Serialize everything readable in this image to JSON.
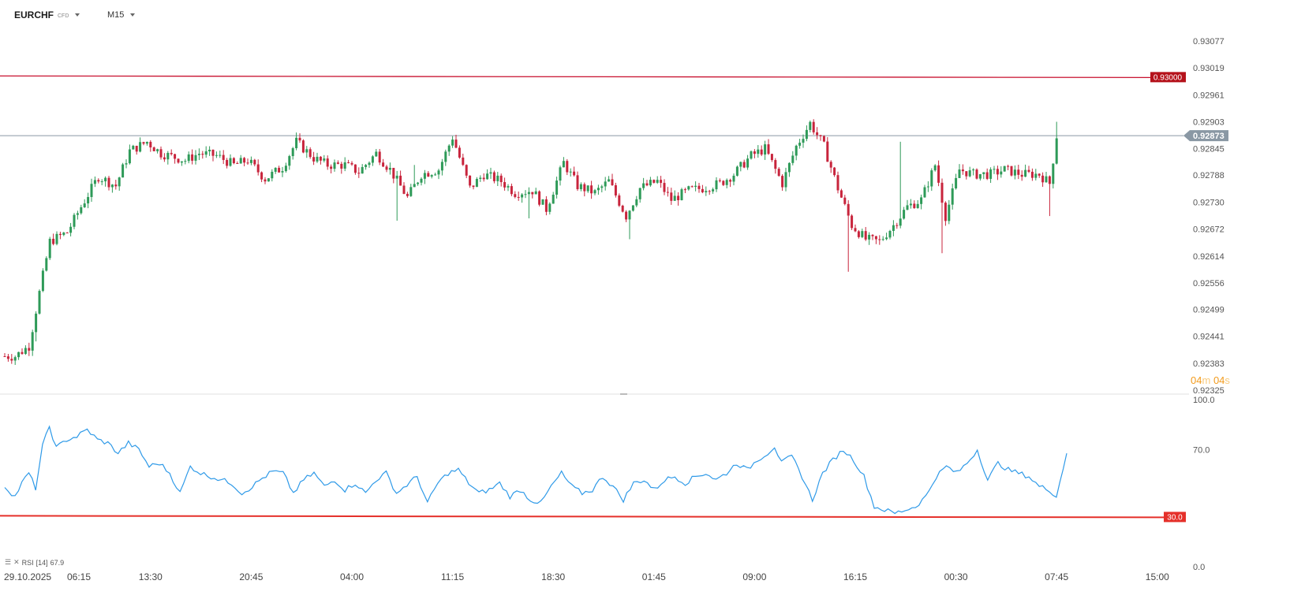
{
  "header": {
    "symbol": "EURCHF",
    "symbol_type": "CFD",
    "timeframe": "M15"
  },
  "timer": {
    "minutes": "04",
    "m": "m",
    "seconds": "04",
    "s": "s"
  },
  "rsi": {
    "label": "RSI",
    "period": "[14]",
    "value": "67.9"
  },
  "colors": {
    "up": "#2e9a58",
    "down": "#c8243c",
    "resistance": "#c8102e",
    "price_line": "#8a98a4",
    "rsi_line": "#2f9ae8",
    "rsi_level": "#e5302a"
  },
  "chart_data": [
    {
      "type": "candlestick",
      "symbol": "EURCHF",
      "timeframe": "M15",
      "ylim": [
        0.92325,
        0.93077
      ],
      "y_ticks": [
        "0.93077",
        "0.93019",
        "0.92961",
        "0.92903",
        "0.92845",
        "0.92788",
        "0.92730",
        "0.92672",
        "0.92614",
        "0.92556",
        "0.92499",
        "0.92441",
        "0.92383",
        "0.92325"
      ],
      "x_ticks": [
        {
          "label": "29.10.2025",
          "bar": 0
        },
        {
          "label": "06:15",
          "bar": 13
        },
        {
          "label": "13:30",
          "bar": 42
        },
        {
          "label": "20:45",
          "bar": 71
        },
        {
          "label": "04:00",
          "bar": 100
        },
        {
          "label": "11:15",
          "bar": 129
        },
        {
          "label": "18:30",
          "bar": 158
        },
        {
          "label": "01:45",
          "bar": 187
        },
        {
          "label": "09:00",
          "bar": 216
        },
        {
          "label": "16:15",
          "bar": 245
        },
        {
          "label": "00:30",
          "bar": 274
        },
        {
          "label": "07:45",
          "bar": 303
        },
        {
          "label": "15:00",
          "bar": 332
        }
      ],
      "horizontal_lines": [
        {
          "value": 0.93,
          "label": "0.93000",
          "kind": "resistance"
        },
        {
          "value": 0.92873,
          "label": "0.92873",
          "kind": "current-price"
        }
      ],
      "close_path": [
        [
          0,
          0.92398
        ],
        [
          3,
          0.92398
        ],
        [
          7,
          0.9242
        ],
        [
          10,
          0.92535
        ],
        [
          13,
          0.92645
        ],
        [
          18,
          0.92665
        ],
        [
          22,
          0.9272
        ],
        [
          27,
          0.92785
        ],
        [
          32,
          0.92765
        ],
        [
          36,
          0.9284
        ],
        [
          41,
          0.9286
        ],
        [
          45,
          0.92835
        ],
        [
          52,
          0.9282
        ],
        [
          56,
          0.92835
        ],
        [
          61,
          0.9283
        ],
        [
          66,
          0.9281
        ],
        [
          70,
          0.9282
        ],
        [
          75,
          0.9278
        ],
        [
          80,
          0.92805
        ],
        [
          84,
          0.9286
        ],
        [
          89,
          0.92825
        ],
        [
          93,
          0.9281
        ],
        [
          98,
          0.9281
        ],
        [
          102,
          0.92795
        ],
        [
          107,
          0.92835
        ],
        [
          111,
          0.928
        ],
        [
          116,
          0.9274
        ],
        [
          120,
          0.9279
        ],
        [
          125,
          0.928
        ],
        [
          129,
          0.9287
        ],
        [
          134,
          0.9276
        ],
        [
          138,
          0.9279
        ],
        [
          143,
          0.92775
        ],
        [
          147,
          0.9275
        ],
        [
          152,
          0.92755
        ],
        [
          156,
          0.92715
        ],
        [
          161,
          0.92815
        ],
        [
          165,
          0.92765
        ],
        [
          170,
          0.9275
        ],
        [
          174,
          0.92775
        ],
        [
          179,
          0.927
        ],
        [
          183,
          0.9276
        ],
        [
          188,
          0.92775
        ],
        [
          192,
          0.92735
        ],
        [
          197,
          0.92755
        ],
        [
          201,
          0.9276
        ],
        [
          206,
          0.9277
        ],
        [
          210,
          0.9279
        ],
        [
          215,
          0.9283
        ],
        [
          219,
          0.92845
        ],
        [
          224,
          0.9277
        ],
        [
          228,
          0.9285
        ],
        [
          232,
          0.929
        ],
        [
          236,
          0.9285
        ],
        [
          240,
          0.9276
        ],
        [
          244,
          0.9268
        ],
        [
          248,
          0.9265
        ],
        [
          252,
          0.92645
        ],
        [
          256,
          0.9268
        ],
        [
          260,
          0.9272
        ],
        [
          264,
          0.92735
        ],
        [
          268,
          0.9281
        ],
        [
          271,
          0.927
        ],
        [
          275,
          0.928
        ],
        [
          279,
          0.9279
        ],
        [
          284,
          0.9279
        ],
        [
          288,
          0.928
        ],
        [
          293,
          0.9279
        ],
        [
          298,
          0.9279
        ],
        [
          301,
          0.9277
        ],
        [
          303,
          0.92873
        ]
      ],
      "spikes": [
        [
          9,
          0.9243
        ],
        [
          113,
          0.9269
        ],
        [
          118,
          0.9281
        ],
        [
          151,
          0.92695
        ],
        [
          180,
          0.9265
        ],
        [
          243,
          0.9258
        ],
        [
          258,
          0.9286
        ],
        [
          270,
          0.9262
        ],
        [
          301,
          0.927
        ],
        [
          303,
          0.92903
        ]
      ],
      "n_bars": 304
    },
    {
      "type": "line",
      "name": "RSI",
      "ylim": [
        0,
        100
      ],
      "y_ticks": [
        "100.0",
        "70.0",
        "30.0",
        "0.0"
      ],
      "levels": [
        {
          "value": 30.0,
          "label": "30.0"
        }
      ],
      "anchors": [
        [
          0,
          48
        ],
        [
          3,
          42
        ],
        [
          5,
          50
        ],
        [
          7,
          56
        ],
        [
          9,
          47
        ],
        [
          11,
          72
        ],
        [
          13,
          84
        ],
        [
          15,
          71
        ],
        [
          18,
          76
        ],
        [
          21,
          78
        ],
        [
          24,
          82
        ],
        [
          27,
          76
        ],
        [
          30,
          74
        ],
        [
          33,
          68
        ],
        [
          36,
          74
        ],
        [
          39,
          70
        ],
        [
          42,
          60
        ],
        [
          45,
          62
        ],
        [
          48,
          56
        ],
        [
          51,
          44
        ],
        [
          54,
          60
        ],
        [
          57,
          56
        ],
        [
          60,
          54
        ],
        [
          63,
          52
        ],
        [
          66,
          50
        ],
        [
          69,
          44
        ],
        [
          72,
          48
        ],
        [
          75,
          53
        ],
        [
          78,
          57
        ],
        [
          81,
          56
        ],
        [
          84,
          44
        ],
        [
          87,
          52
        ],
        [
          90,
          56
        ],
        [
          93,
          48
        ],
        [
          96,
          52
        ],
        [
          99,
          46
        ],
        [
          102,
          50
        ],
        [
          105,
          44
        ],
        [
          108,
          52
        ],
        [
          111,
          56
        ],
        [
          114,
          44
        ],
        [
          117,
          49
        ],
        [
          120,
          54
        ],
        [
          123,
          38
        ],
        [
          126,
          50
        ],
        [
          129,
          56
        ],
        [
          132,
          58
        ],
        [
          135,
          50
        ],
        [
          138,
          44
        ],
        [
          141,
          46
        ],
        [
          144,
          50
        ],
        [
          147,
          42
        ],
        [
          150,
          46
        ],
        [
          153,
          40
        ],
        [
          156,
          38
        ],
        [
          159,
          48
        ],
        [
          162,
          56
        ],
        [
          165,
          48
        ],
        [
          168,
          44
        ],
        [
          171,
          46
        ],
        [
          174,
          54
        ],
        [
          177,
          48
        ],
        [
          180,
          40
        ],
        [
          183,
          50
        ],
        [
          186,
          52
        ],
        [
          189,
          46
        ],
        [
          192,
          52
        ],
        [
          195,
          54
        ],
        [
          198,
          50
        ],
        [
          201,
          54
        ],
        [
          204,
          56
        ],
        [
          207,
          52
        ],
        [
          210,
          56
        ],
        [
          213,
          62
        ],
        [
          216,
          58
        ],
        [
          219,
          64
        ],
        [
          222,
          68
        ],
        [
          224,
          72
        ],
        [
          226,
          62
        ],
        [
          229,
          66
        ],
        [
          232,
          54
        ],
        [
          235,
          40
        ],
        [
          238,
          56
        ],
        [
          241,
          64
        ],
        [
          244,
          70
        ],
        [
          247,
          64
        ],
        [
          250,
          54
        ],
        [
          253,
          36
        ],
        [
          256,
          34
        ],
        [
          259,
          32
        ],
        [
          262,
          34
        ],
        [
          265,
          36
        ],
        [
          268,
          42
        ],
        [
          271,
          54
        ],
        [
          274,
          60
        ],
        [
          277,
          56
        ],
        [
          280,
          62
        ],
        [
          283,
          70
        ],
        [
          286,
          52
        ],
        [
          289,
          62
        ],
        [
          292,
          58
        ],
        [
          295,
          56
        ],
        [
          298,
          54
        ],
        [
          301,
          48
        ],
        [
          304,
          46
        ],
        [
          306,
          42
        ],
        [
          309,
          67.9
        ]
      ]
    }
  ]
}
